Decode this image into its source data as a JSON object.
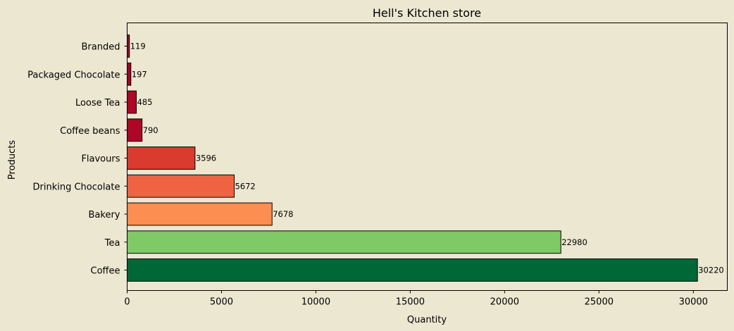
{
  "chart_data": {
    "type": "bar",
    "orientation": "horizontal",
    "title": "Hell's Kitchen store",
    "xlabel": "Quantity",
    "ylabel": "Products",
    "categories": [
      "Coffee",
      "Tea",
      "Bakery",
      "Drinking Chocolate",
      "Flavours",
      "Coffee beans",
      "Loose Tea",
      "Packaged Chocolate",
      "Branded"
    ],
    "values": [
      30220,
      22980,
      7678,
      5672,
      3596,
      790,
      485,
      197,
      119
    ],
    "colors": [
      "#006837",
      "#7fc966",
      "#fb8e50",
      "#ef6342",
      "#db3a2f",
      "#ad0626",
      "#ad0626",
      "#a50026",
      "#a50026"
    ],
    "xlim": [
      0,
      31800
    ],
    "xticks": [
      0,
      5000,
      10000,
      15000,
      20000,
      25000,
      30000
    ],
    "grid": false,
    "legend": "none",
    "background": "#ece7d1"
  }
}
